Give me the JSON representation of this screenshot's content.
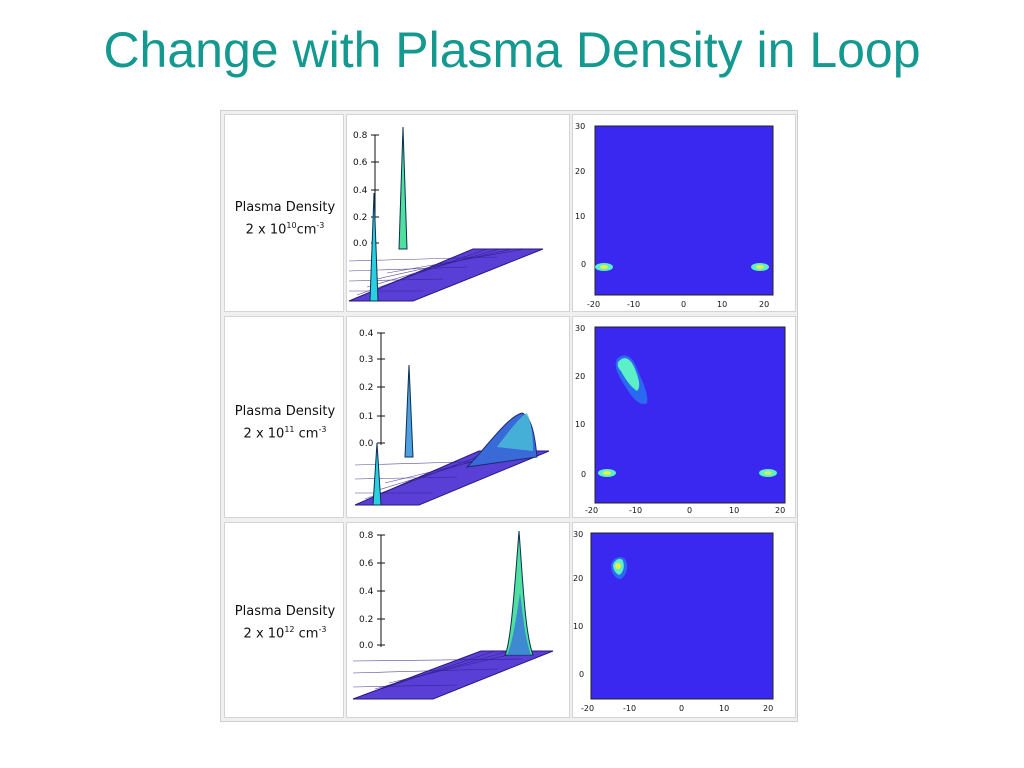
{
  "slide": {
    "title": "Change with Plasma Density in Loop"
  },
  "colors": {
    "title": "#13998f",
    "map_bg": "#3b28f0",
    "surface": "#5a3fd6",
    "peak_light": "#5cf0c8"
  },
  "rows": [
    {
      "label_line1": "Plasma Density",
      "label_prefix": "2 x 10",
      "label_exp": "10",
      "label_unit": "cm",
      "label_unit_exp": "-3",
      "surface": {
        "z_ticks": [
          "0.8",
          "0.6",
          "0.4",
          "0.2",
          "0.0"
        ]
      },
      "map": {
        "x_ticks": [
          "-20",
          "-10",
          "0",
          "10",
          "20"
        ],
        "y_ticks": [
          "30",
          "20",
          "10",
          "0"
        ],
        "hotspots": [
          {
            "x": -18,
            "y": 0
          },
          {
            "x": 17,
            "y": 0
          }
        ]
      }
    },
    {
      "label_line1": "Plasma Density",
      "label_prefix": "2 x 10",
      "label_exp": "11",
      "label_unit": "cm",
      "label_unit_exp": "-3",
      "surface": {
        "z_ticks": [
          "0.4",
          "0.3",
          "0.2",
          "0.1",
          "0.0"
        ]
      },
      "map": {
        "x_ticks": [
          "-20",
          "-10",
          "0",
          "10",
          "20"
        ],
        "y_ticks": [
          "30",
          "20",
          "10",
          "0"
        ],
        "hotspots": [
          {
            "x": -18,
            "y": 0
          },
          {
            "x": 17,
            "y": 0
          },
          {
            "x": -12,
            "y": 20
          }
        ]
      }
    },
    {
      "label_line1": "Plasma Density",
      "label_prefix": "2 x 10",
      "label_exp": "12",
      "label_unit": "cm",
      "label_unit_exp": "-3",
      "surface": {
        "z_ticks": [
          "0.8",
          "0.6",
          "0.4",
          "0.2",
          "0.0"
        ]
      },
      "map": {
        "x_ticks": [
          "-20",
          "-10",
          "0",
          "10",
          "20"
        ],
        "y_ticks": [
          "30",
          "20",
          "10",
          "0"
        ],
        "hotspots": [
          {
            "x": -13,
            "y": 23
          }
        ]
      }
    }
  ]
}
